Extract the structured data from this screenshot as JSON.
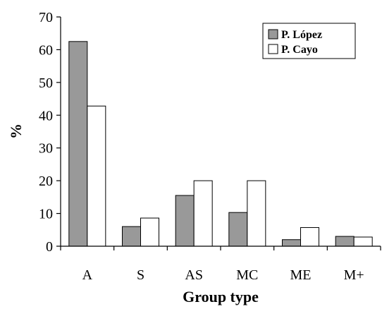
{
  "chart_data": {
    "type": "bar",
    "categories": [
      "A",
      "S",
      "AS",
      "MC",
      "ME",
      "M+"
    ],
    "series": [
      {
        "name": "P. López",
        "values": [
          62.5,
          6,
          15.5,
          10.3,
          2,
          3
        ],
        "color": "#999999"
      },
      {
        "name": "P. Cayo",
        "values": [
          42.8,
          8.6,
          20,
          20,
          5.7,
          2.8
        ],
        "color": "#ffffff"
      }
    ],
    "xlabel": "Group type",
    "ylabel": "%",
    "ylim": [
      0,
      70
    ],
    "yticks": [
      0,
      10,
      20,
      30,
      40,
      50,
      60,
      70
    ],
    "grid": false,
    "legend_position": "top-right"
  }
}
